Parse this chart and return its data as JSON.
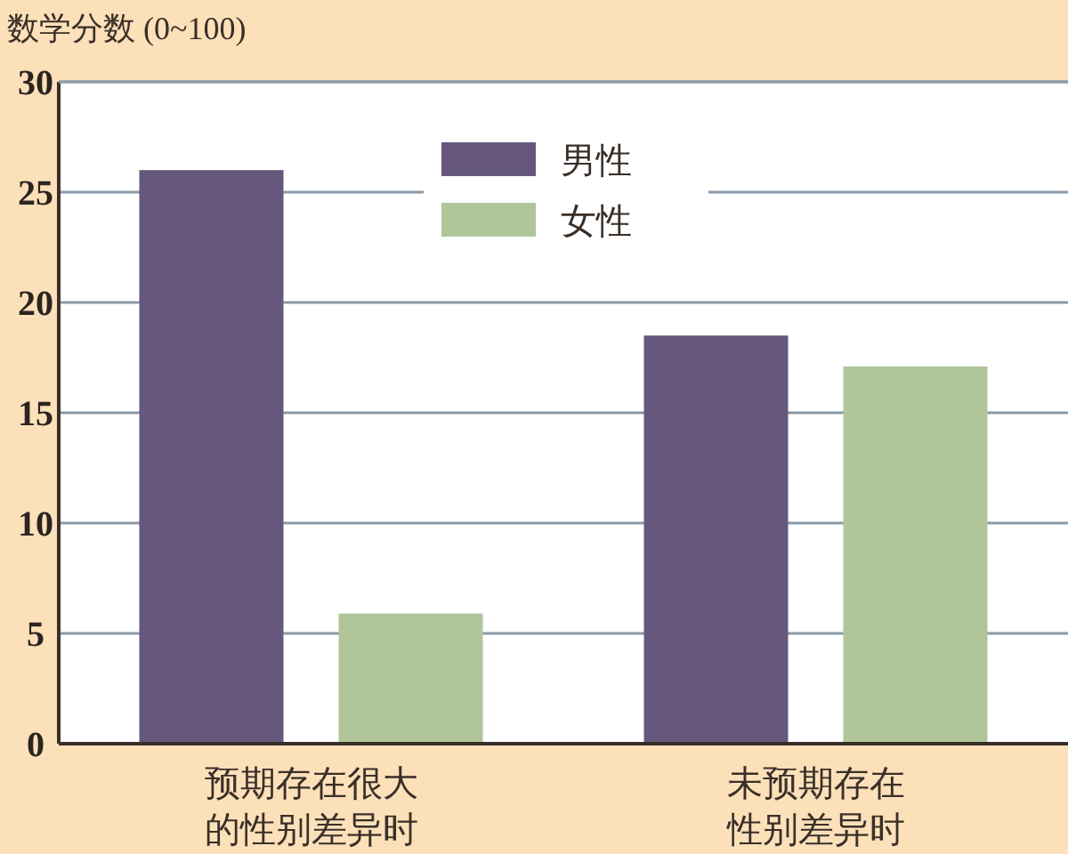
{
  "chart_data": {
    "type": "bar",
    "title": "数学分数 (0~100)",
    "categories": [
      "预期存在很大的性别差异时",
      "未预期存在性别差异时"
    ],
    "series": [
      {
        "name": "男性",
        "color": "#65587c",
        "values": [
          26.0,
          18.5
        ]
      },
      {
        "name": "女性",
        "color": "#b1c59b",
        "values": [
          5.9,
          17.1
        ]
      }
    ],
    "ylim": [
      0,
      30
    ],
    "yticks": [
      0,
      5,
      10,
      15,
      20,
      25,
      30
    ],
    "grid": "y",
    "legend": "top"
  }
}
